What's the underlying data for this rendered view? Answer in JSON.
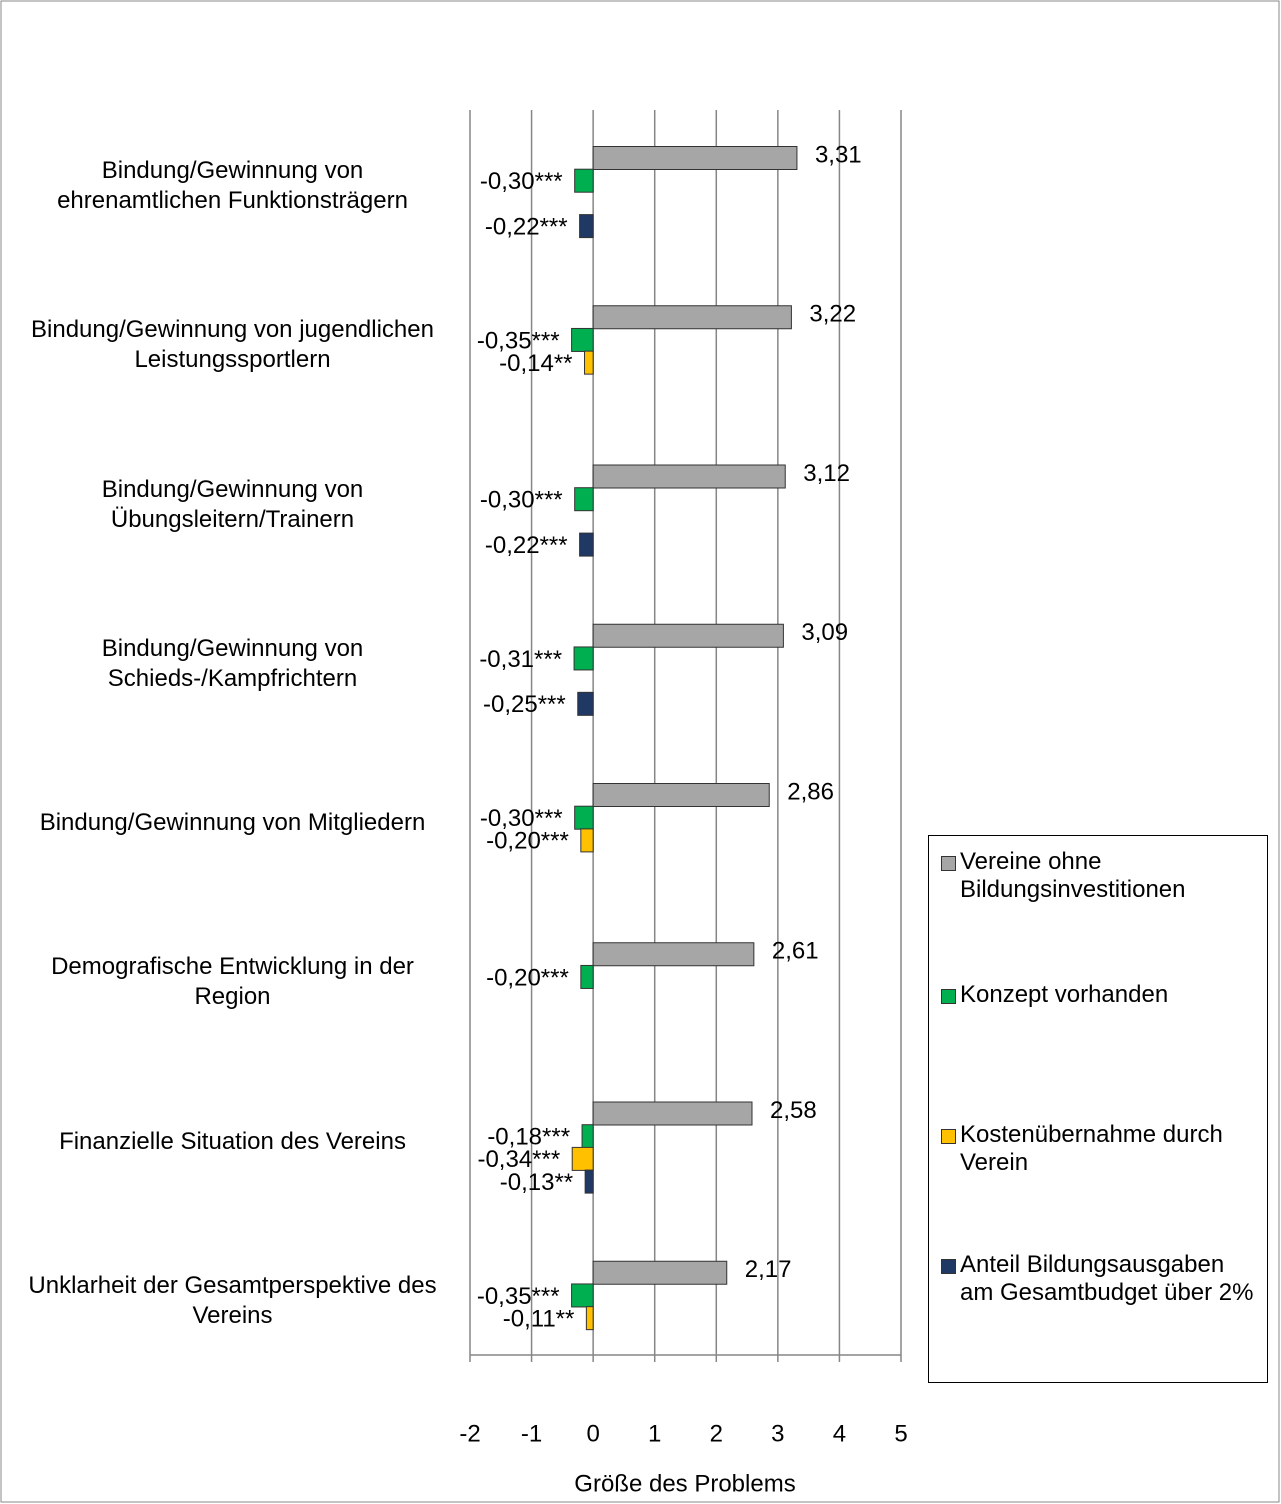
{
  "chart_data": {
    "type": "hbar",
    "x_label": "Größe des Problems",
    "categories": [
      "Bindung/Gewinnung von ehrenamtlichen Funktionsträgern",
      "Bindung/Gewinnung von jugendlichen Leistungssportlern",
      "Bindung/Gewinnung von Übungsleitern/Trainern",
      "Bindung/Gewinnung von Schieds-/Kampfrichtern",
      "Bindung/Gewinnung von Mitgliedern",
      "Demografische Entwicklung in der Region",
      "Finanzielle Situation des Vereins",
      "Unklarheit der Gesamtperspektive des Vereins"
    ],
    "series": [
      {
        "name": "Vereine ohne Bildungsinvestitionen",
        "color": "#a6a6a6",
        "values": [
          3.31,
          3.22,
          3.12,
          3.09,
          2.86,
          2.61,
          2.58,
          2.17
        ],
        "value_labels": [
          "3,31",
          "3,22",
          "3,12",
          "3,09",
          "2,86",
          "2,61",
          "2,58",
          "2,17"
        ]
      },
      {
        "name": "Konzept vorhanden",
        "color": "#00b050",
        "values": [
          -0.3,
          -0.35,
          -0.3,
          -0.31,
          -0.3,
          -0.2,
          -0.18,
          -0.35
        ],
        "value_labels": [
          "-0,30***",
          "-0,35***",
          "-0,30***",
          "-0,31***",
          "-0,30***",
          "-0,20***",
          "-0,18***",
          "-0,35***"
        ]
      },
      {
        "name": "Kostenübernahme durch Verein",
        "color": "#ffc000",
        "values": [
          null,
          -0.14,
          null,
          null,
          -0.2,
          null,
          -0.34,
          -0.11
        ],
        "value_labels": [
          null,
          "-0,14**",
          null,
          null,
          "-0,20***",
          null,
          "-0,34***",
          "-0,11**"
        ]
      },
      {
        "name": "Anteil Bildungsausgaben am Gesamtbudget über 2%",
        "color": "#1f3864",
        "values": [
          -0.22,
          null,
          -0.22,
          -0.25,
          null,
          null,
          -0.13,
          null
        ],
        "value_labels": [
          "-0,22***",
          null,
          "-0,22***",
          "-0,25***",
          null,
          null,
          "-0,13**",
          null
        ]
      }
    ],
    "xlim": [
      -2,
      5
    ],
    "xticks": [
      -2,
      -1,
      0,
      1,
      2,
      3,
      4,
      5
    ],
    "grid": true,
    "legend": "right"
  }
}
